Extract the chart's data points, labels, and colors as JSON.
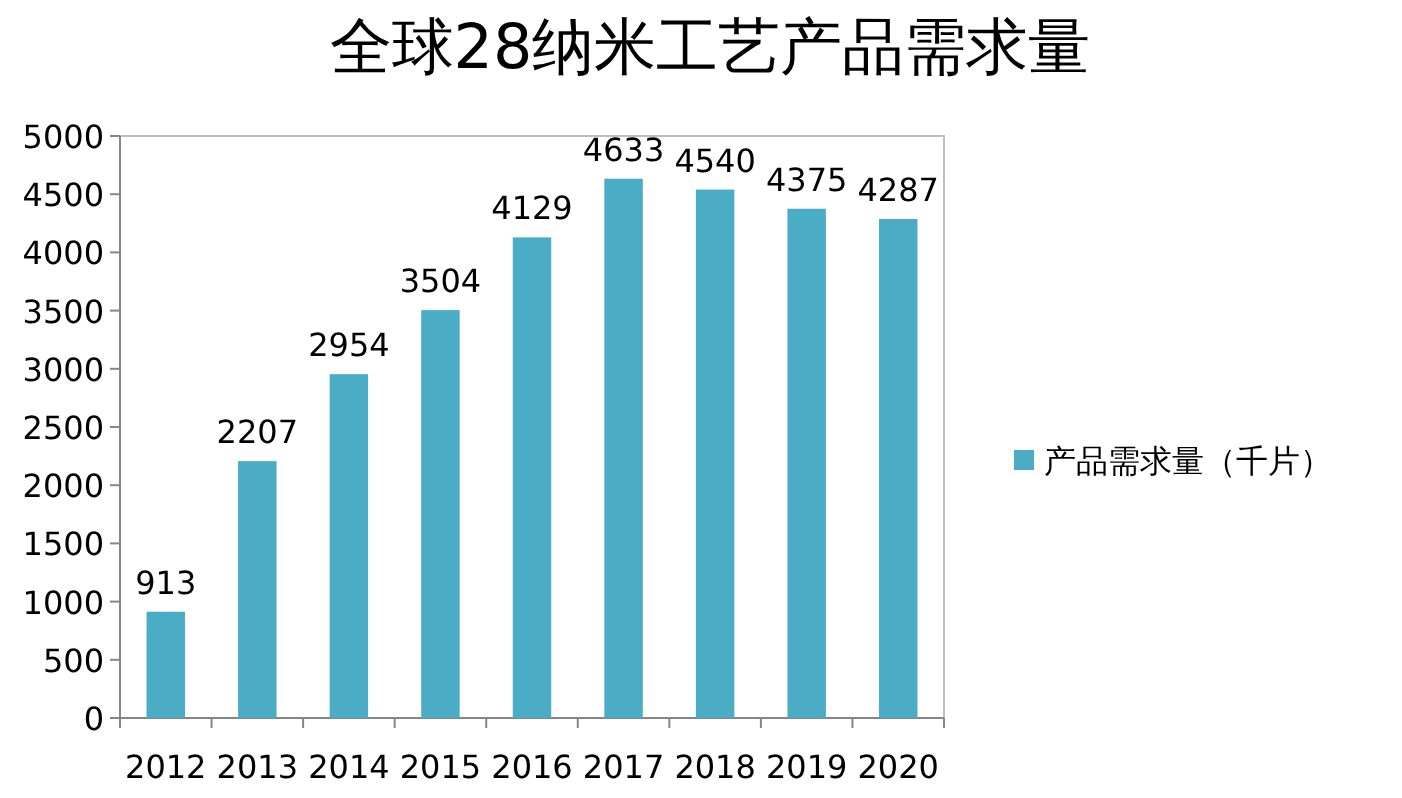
{
  "chart_data": {
    "type": "bar",
    "title": "全球28纳米工艺产品需求量",
    "categories": [
      "2012",
      "2013",
      "2014",
      "2015",
      "2016",
      "2017",
      "2018",
      "2019",
      "2020"
    ],
    "series": [
      {
        "name": "产品需求量（千片）",
        "color": "#4bacc6",
        "values": [
          913,
          2207,
          2954,
          3504,
          4129,
          4633,
          4540,
          4375,
          4287
        ]
      }
    ],
    "ylim": [
      0,
      5000
    ],
    "yticks": [
      0,
      500,
      1000,
      1500,
      2000,
      2500,
      3000,
      3500,
      4000,
      4500,
      5000
    ],
    "data_labels": true,
    "legend": "right",
    "grid": false
  }
}
